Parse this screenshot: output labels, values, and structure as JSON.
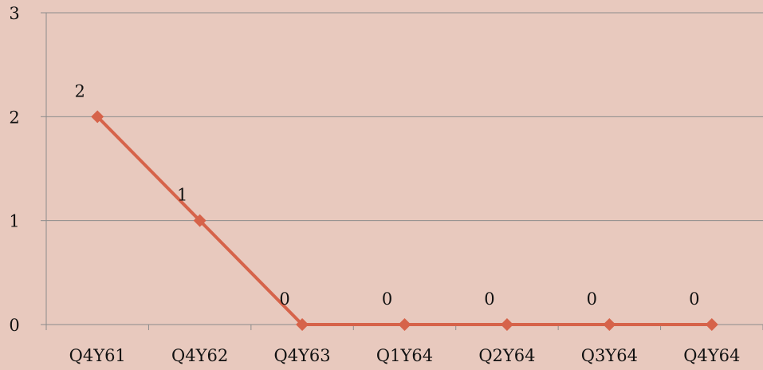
{
  "chart_data": {
    "type": "line",
    "categories": [
      "Q4Y61",
      "Q4Y62",
      "Q4Y63",
      "Q1Y64",
      "Q2Y64",
      "Q3Y64",
      "Q4Y64"
    ],
    "series": [
      {
        "values": [
          2,
          1,
          0,
          0,
          0,
          0,
          0
        ],
        "color": "#d6634a",
        "marker": "diamond"
      }
    ],
    "ylim": [
      0,
      3
    ],
    "yticks": [
      0,
      1,
      2,
      3
    ],
    "ytick_labels": [
      "0",
      "1",
      "2",
      "3"
    ],
    "data_labels": [
      "2",
      "1",
      "0",
      "0",
      "0",
      "0",
      "0"
    ],
    "grid": true,
    "legend": "none",
    "colors": {
      "background": "#e8c9be",
      "grid": "#8c8c8c",
      "line": "#d6634a"
    }
  }
}
